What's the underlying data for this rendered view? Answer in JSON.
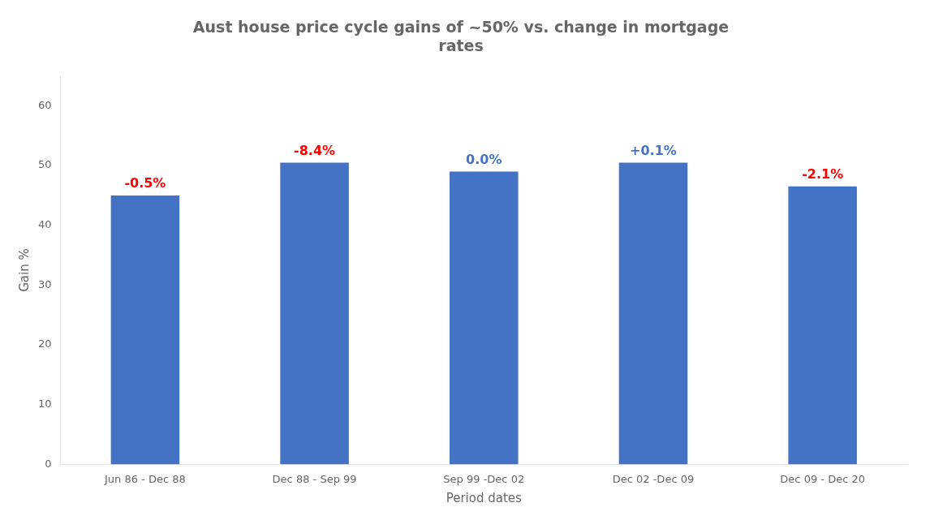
{
  "chart_data": {
    "type": "bar",
    "title": "Aust house price cycle gains of ~50% vs. change in mortgage\nrates",
    "xlabel": "Period dates",
    "ylabel": "Gain %",
    "categories": [
      "Jun 86 - Dec 88",
      "Dec 88 - Sep 99",
      "Sep 99 -Dec 02",
      "Dec 02 -Dec 09",
      "Dec 09 - Dec 20"
    ],
    "values": [
      45,
      50.5,
      49,
      50.5,
      46.5
    ],
    "color": "#4472C4",
    "annotations": [
      {
        "text": "-0.5%",
        "color": "#FF0000"
      },
      {
        "text": "-8.4%",
        "color": "#FF0000"
      },
      {
        "text": "0.0%",
        "color": "#4472C4"
      },
      {
        "text": "+0.1%",
        "color": "#4472C4"
      },
      {
        "text": "-2.1%",
        "color": "#FF0000"
      }
    ],
    "ylim": [
      0,
      65
    ],
    "yticks": [
      0,
      10,
      20,
      30,
      40,
      50,
      60
    ],
    "grid": false
  }
}
